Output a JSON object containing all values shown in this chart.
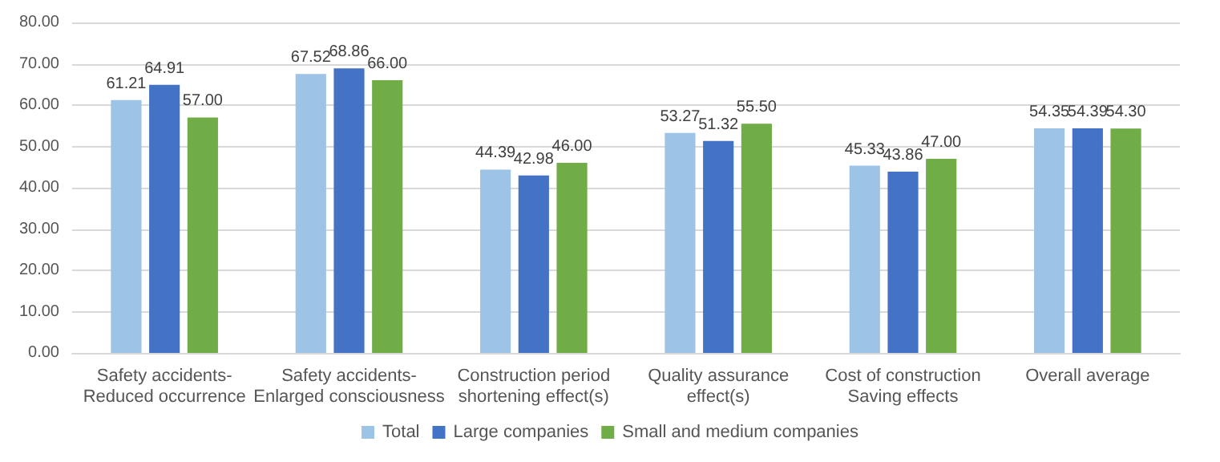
{
  "chart_data": {
    "type": "bar",
    "categories": [
      "Safety accidents-\nReduced occurrence",
      "Safety accidents-\nEnlarged consciousness",
      "Construction period\nshortening effect(s)",
      "Quality assurance\neffect(s)",
      "Cost of construction\nSaving effects",
      "Overall average"
    ],
    "series": [
      {
        "name": "Total",
        "color": "#9dc3e6",
        "values": [
          61.21,
          67.52,
          44.39,
          53.27,
          45.33,
          54.35
        ],
        "value_labels": [
          "61.21",
          "67.52",
          "44.39",
          "53.27",
          "45.33",
          "54.35"
        ]
      },
      {
        "name": "Large companies",
        "color": "#4472c4",
        "values": [
          64.91,
          68.86,
          42.98,
          51.32,
          43.86,
          54.39
        ],
        "value_labels": [
          "64.91",
          "68.86",
          "42.98",
          "51.32",
          "43.86",
          "54.39"
        ]
      },
      {
        "name": "Small and medium companies",
        "color": "#70ad47",
        "values": [
          57,
          66,
          46,
          55.5,
          47,
          54.3
        ],
        "value_labels": [
          "57.00",
          "66.00",
          "46.00",
          "55.50",
          "47.00",
          "54.30"
        ]
      }
    ],
    "ylim": [
      0,
      80
    ],
    "yticks": [
      {
        "value": 0,
        "label": "0.00"
      },
      {
        "value": 10,
        "label": "10.00"
      },
      {
        "value": 20,
        "label": "20.00"
      },
      {
        "value": 30,
        "label": "30.00"
      },
      {
        "value": 40,
        "label": "40.00"
      },
      {
        "value": 50,
        "label": "50.00"
      },
      {
        "value": 60,
        "label": "60.00"
      },
      {
        "value": 70,
        "label": "70.00"
      },
      {
        "value": 80,
        "label": "80.00"
      }
    ],
    "grid": "y",
    "legend": "bottom"
  }
}
